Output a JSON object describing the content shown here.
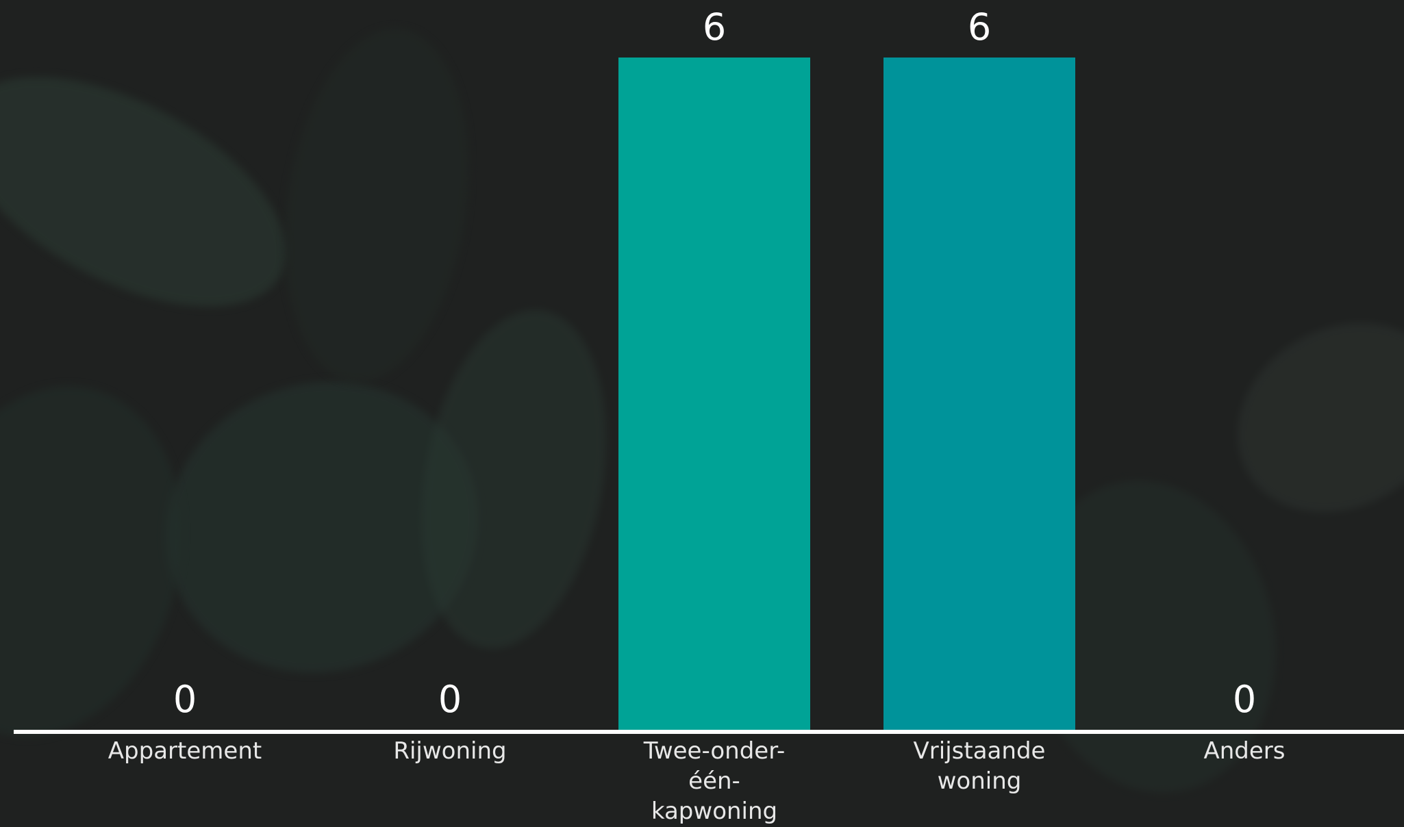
{
  "chart_data": {
    "type": "bar",
    "categories": [
      "Appartement",
      "Rijwoning",
      "Twee-onder-één-kapwoning",
      "Vrijstaande woning",
      "Anders"
    ],
    "category_lines": [
      [
        "Appartement"
      ],
      [
        "Rijwoning"
      ],
      [
        "Twee-onder-",
        "één-",
        "kapwoning"
      ],
      [
        "Vrijstaande",
        "woning"
      ],
      [
        "Anders"
      ]
    ],
    "values": [
      0,
      0,
      6,
      6,
      0
    ],
    "value_labels": [
      "0",
      "0",
      "6",
      "6",
      "0"
    ],
    "ylim": [
      0,
      6
    ],
    "grid": false,
    "bar_colors": [
      "#00a396",
      "#00a396",
      "#00a396",
      "#00939a",
      "#00a396"
    ],
    "axis_color": "#ffffff",
    "background_color": "#1f2120"
  }
}
